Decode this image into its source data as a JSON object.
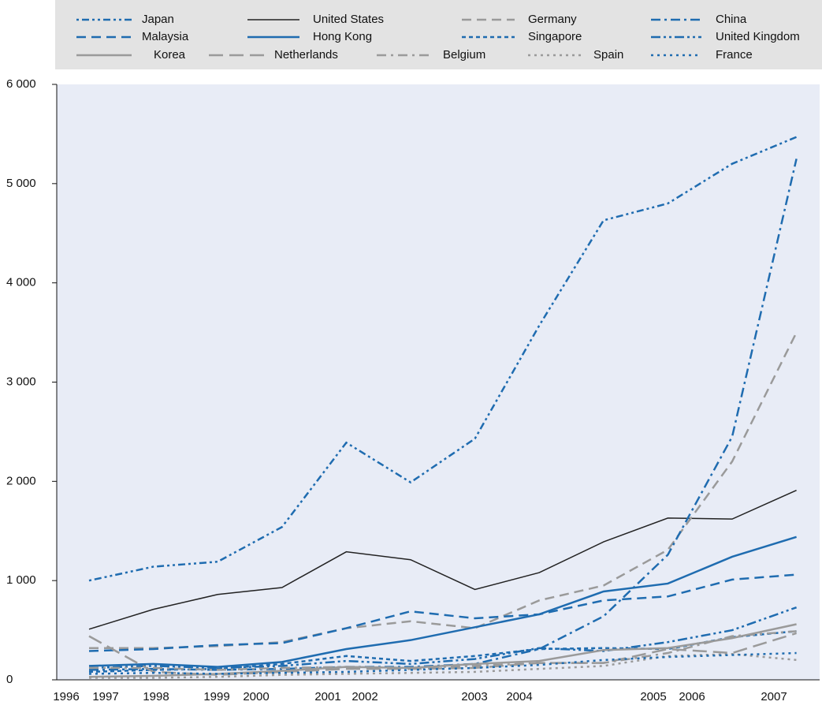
{
  "chart_data": {
    "type": "line",
    "categories": [
      "1996",
      "1997",
      "1998",
      "1999",
      "2000",
      "2001",
      "2002",
      "2003",
      "2004",
      "2005",
      "2006",
      "2007"
    ],
    "ylim": [
      0,
      6000
    ],
    "yticks": [
      0,
      {
        "value": 1000,
        "label": "1 000"
      },
      {
        "value": 2000,
        "label": "2 000"
      },
      {
        "value": 3000,
        "label": "3 000"
      },
      {
        "value": 4000,
        "label": "4 000"
      },
      {
        "value": 5000,
        "label": "5 000"
      },
      {
        "value": 6000,
        "label": "6 000"
      }
    ],
    "series": [
      {
        "name": "Japan",
        "color": "#1f6cb0",
        "values": [
          1000,
          1140,
          1190,
          1540,
          2390,
          1990,
          2430,
          3570,
          4630,
          4800,
          5200,
          5470
        ]
      },
      {
        "name": "United States",
        "color": "#222222",
        "values": [
          510,
          710,
          860,
          930,
          1290,
          1210,
          910,
          1080,
          1390,
          1630,
          1620,
          1910
        ]
      },
      {
        "name": "Germany",
        "color": "#9a9a9a",
        "values": [
          320,
          320,
          340,
          380,
          520,
          590,
          520,
          800,
          950,
          1310,
          2200,
          3500
        ]
      },
      {
        "name": "China",
        "color": "#1f6cb0",
        "values": [
          100,
          110,
          100,
          110,
          130,
          130,
          160,
          310,
          640,
          1260,
          2450,
          5250
        ]
      },
      {
        "name": "Malaysia",
        "color": "#1f6cb0",
        "values": [
          290,
          310,
          350,
          370,
          520,
          690,
          620,
          660,
          800,
          840,
          1010,
          1060
        ]
      },
      {
        "name": "Hong Kong",
        "color": "#1f6cb0",
        "values": [
          140,
          160,
          130,
          180,
          310,
          400,
          530,
          660,
          890,
          970,
          1240,
          1440
        ]
      },
      {
        "name": "Singapore",
        "color": "#1f6cb0",
        "values": [
          80,
          100,
          110,
          160,
          240,
          190,
          240,
          310,
          320,
          310,
          430,
          490
        ]
      },
      {
        "name": "United Kingdom",
        "color": "#1f6cb0",
        "values": [
          120,
          140,
          120,
          140,
          190,
          160,
          210,
          320,
          290,
          380,
          500,
          730
        ]
      },
      {
        "name": "Korea",
        "color": "#9a9a9a",
        "values": [
          30,
          40,
          60,
          90,
          130,
          120,
          160,
          190,
          300,
          320,
          420,
          560
        ]
      },
      {
        "name": "Netherlands",
        "color": "#9a9a9a",
        "values": [
          440,
          80,
          50,
          80,
          110,
          110,
          120,
          170,
          170,
          310,
          270,
          470
        ]
      },
      {
        "name": "Belgium",
        "color": "#9a9a9a",
        "values": [
          120,
          120,
          100,
          120,
          130,
          120,
          140,
          170,
          170,
          270,
          440,
          490
        ]
      },
      {
        "name": "Spain",
        "color": "#9a9a9a",
        "values": [
          20,
          20,
          30,
          50,
          60,
          70,
          80,
          110,
          140,
          240,
          260,
          200
        ]
      },
      {
        "name": "France",
        "color": "#1f6cb0",
        "values": [
          60,
          70,
          60,
          70,
          80,
          100,
          120,
          150,
          200,
          230,
          250,
          270
        ]
      }
    ]
  }
}
